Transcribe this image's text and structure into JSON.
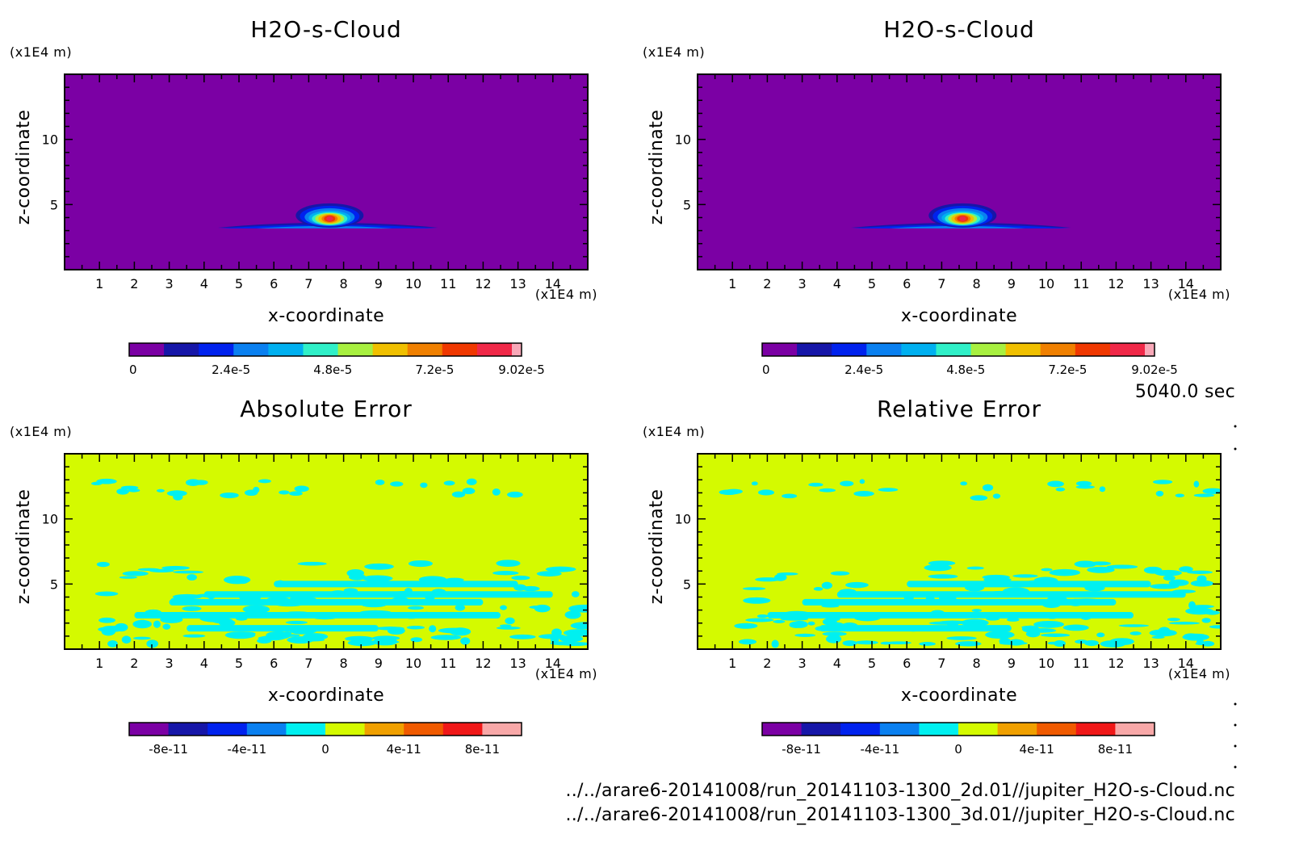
{
  "chart_data": [
    {
      "type": "heatmap",
      "field": "field",
      "title": "H2O-s-Cloud",
      "xlabel": "x-coordinate",
      "ylabel": "z-coordinate",
      "x_unit": "(x1E4 m)",
      "y_unit": "(x1E4 m)",
      "xlim": [
        0,
        15
      ],
      "ylim": [
        0,
        15
      ],
      "x_ticks": [
        "1",
        "2",
        "3",
        "4",
        "5",
        "6",
        "7",
        "8",
        "9",
        "10",
        "11",
        "12",
        "13",
        "14"
      ],
      "y_ticks": [
        "5",
        "10"
      ],
      "colorbar": {
        "colors": [
          "#7b00a4",
          "#1616a8",
          "#0022ee",
          "#0a80f0",
          "#00b0f0",
          "#30f0c8",
          "#a8f040",
          "#f0c000",
          "#f08000",
          "#f03800",
          "#f02848",
          "#f8a8b8"
        ],
        "tick_labels": [
          "0",
          "2.4e-5",
          "4.8e-5",
          "7.2e-5",
          "9.02e-5"
        ],
        "range": [
          0,
          9.02e-05
        ]
      },
      "features": [
        {
          "kind": "cloud",
          "center_x": 7.6,
          "center_z": 4.1,
          "value_max": 9.02e-05
        }
      ]
    },
    {
      "type": "heatmap",
      "field": "field",
      "title": "H2O-s-Cloud",
      "xlabel": "x-coordinate",
      "ylabel": "z-coordinate",
      "x_unit": "(x1E4 m)",
      "y_unit": "(x1E4 m)",
      "xlim": [
        0,
        15
      ],
      "ylim": [
        0,
        15
      ],
      "x_ticks": [
        "1",
        "2",
        "3",
        "4",
        "5",
        "6",
        "7",
        "8",
        "9",
        "10",
        "11",
        "12",
        "13",
        "14"
      ],
      "y_ticks": [
        "5",
        "10"
      ],
      "colorbar": {
        "colors": [
          "#7b00a4",
          "#1616a8",
          "#0022ee",
          "#0a80f0",
          "#00b0f0",
          "#30f0c8",
          "#a8f040",
          "#f0c000",
          "#f08000",
          "#f03800",
          "#f02848",
          "#f8a8b8"
        ],
        "tick_labels": [
          "0",
          "2.4e-5",
          "4.8e-5",
          "7.2e-5",
          "9.02e-5"
        ],
        "range": [
          0,
          9.02e-05
        ]
      },
      "features": [
        {
          "kind": "cloud",
          "center_x": 7.6,
          "center_z": 4.1,
          "value_max": 9.02e-05
        }
      ]
    },
    {
      "type": "heatmap",
      "field": "error",
      "title": "Absolute Error",
      "xlabel": "x-coordinate",
      "ylabel": "z-coordinate",
      "x_unit": "(x1E4 m)",
      "y_unit": "(x1E4 m)",
      "xlim": [
        0,
        15
      ],
      "ylim": [
        0,
        15
      ],
      "x_ticks": [
        "1",
        "2",
        "3",
        "4",
        "5",
        "6",
        "7",
        "8",
        "9",
        "10",
        "11",
        "12",
        "13",
        "14"
      ],
      "y_ticks": [
        "5",
        "10"
      ],
      "colorbar": {
        "colors": [
          "#7b00a4",
          "#1616a8",
          "#0022ee",
          "#0a80f0",
          "#00f0f0",
          "#d4fa00",
          "#f0a000",
          "#f05a00",
          "#f01818",
          "#f8a8a8"
        ],
        "tick_labels": [
          "-8e-11",
          "-4e-11",
          "0",
          "4e-11",
          "8e-11"
        ],
        "range": [
          -1e-10,
          1e-10
        ]
      },
      "background_value": "0 to 2e-11",
      "patch_value": "-2e-11 to 0",
      "seed": 7
    },
    {
      "type": "heatmap",
      "field": "error",
      "title": "Relative Error",
      "xlabel": "x-coordinate",
      "ylabel": "z-coordinate",
      "x_unit": "(x1E4 m)",
      "y_unit": "(x1E4 m)",
      "xlim": [
        0,
        15
      ],
      "ylim": [
        0,
        15
      ],
      "x_ticks": [
        "1",
        "2",
        "3",
        "4",
        "5",
        "6",
        "7",
        "8",
        "9",
        "10",
        "11",
        "12",
        "13",
        "14"
      ],
      "y_ticks": [
        "5",
        "10"
      ],
      "colorbar": {
        "colors": [
          "#7b00a4",
          "#1616a8",
          "#0022ee",
          "#0a80f0",
          "#00f0f0",
          "#d4fa00",
          "#f0a000",
          "#f05a00",
          "#f01818",
          "#f8a8a8"
        ],
        "tick_labels": [
          "-8e-11",
          "-4e-11",
          "0",
          "4e-11",
          "8e-11"
        ],
        "range": [
          -1e-10,
          1e-10
        ]
      },
      "background_value": "0 to 2e-11",
      "patch_value": "-2e-11 to 0",
      "seed": 13
    }
  ],
  "time_label": "5040.0 sec",
  "file_paths": [
    "../../arare6-20141008/run_20141103-1300_2d.01//jupiter_H2O-s-Cloud.nc",
    "../../arare6-20141008/run_20141103-1300_3d.01//jupiter_H2O-s-Cloud.nc"
  ]
}
